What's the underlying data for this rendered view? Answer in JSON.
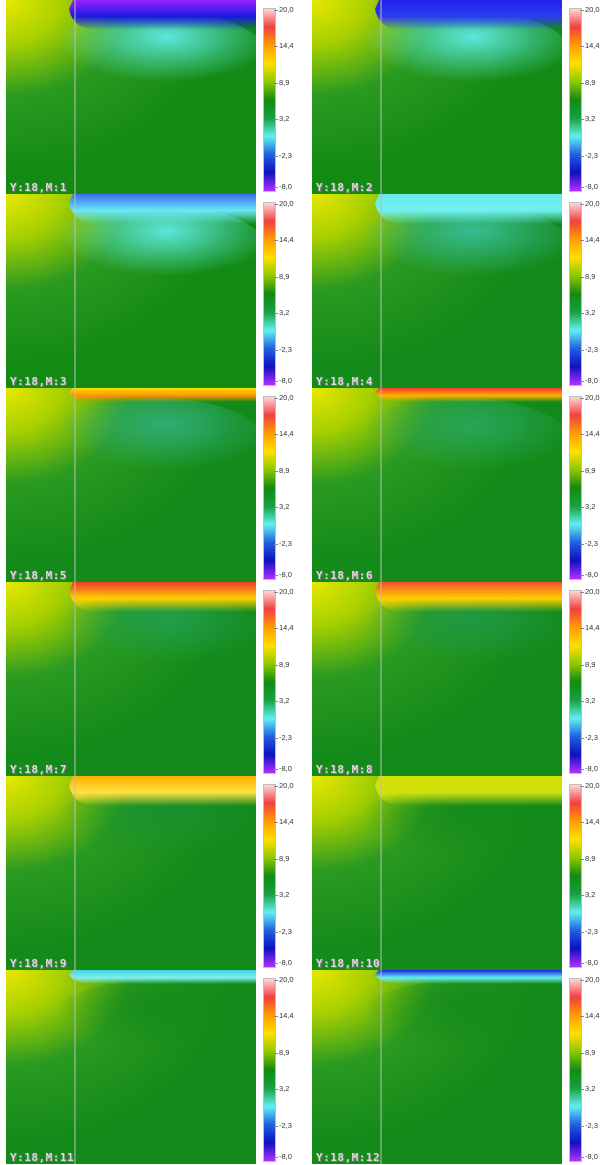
{
  "colorbar": {
    "ticks": [
      "20,0",
      "14,4",
      "8,9",
      "3,2",
      "-2,3",
      "-8,0"
    ],
    "colors": [
      "#ffd6d6",
      "#f04040",
      "#ff9c00",
      "#ffe000",
      "#8ec800",
      "#138a13",
      "#18a040",
      "#60f0f0",
      "#2060e0",
      "#1010c0",
      "#b030ff"
    ],
    "range": [
      -8.0,
      20.0
    ]
  },
  "chart_data": [
    {
      "type": "heatmap",
      "label": "Y:18,M:1",
      "top_band": {
        "color": "#9a20ff",
        "secondary": "#1a1ae0",
        "extent": "full"
      },
      "subsurface": "#60f0f0"
    },
    {
      "type": "heatmap",
      "label": "Y:18,M:2",
      "top_band": {
        "color": "#2222e8",
        "secondary": "#2a3cf0",
        "extent": "full"
      },
      "subsurface": "#60f0f0"
    },
    {
      "type": "heatmap",
      "label": "Y:18,M:3",
      "top_band": {
        "color": "#3a6cf0",
        "secondary": "#6ae8f5",
        "extent": "full"
      },
      "subsurface": "#60f0f0"
    },
    {
      "type": "heatmap",
      "label": "Y:18,M:4",
      "top_band": {
        "color": "#6ae8f0",
        "secondary": "#70f0f0",
        "extent": "full"
      },
      "subsurface": "#38c0a0"
    },
    {
      "type": "heatmap",
      "label": "Y:18,M:5",
      "top_band": {
        "color": "#ffe000",
        "secondary": "#ff9000",
        "extent": "thin"
      },
      "subsurface": "#30b080"
    },
    {
      "type": "heatmap",
      "label": "Y:18,M:6",
      "top_band": {
        "color": "#f03a2a",
        "secondary": "#ffb000",
        "extent": "thin"
      },
      "subsurface": "#28a860"
    },
    {
      "type": "heatmap",
      "label": "Y:18,M:7",
      "top_band": {
        "color": "#ee3a2a",
        "secondary": "#ffd000",
        "extent": "full"
      },
      "subsurface": "#20a050"
    },
    {
      "type": "heatmap",
      "label": "Y:18,M:8",
      "top_band": {
        "color": "#f2502a",
        "secondary": "#ffd000",
        "extent": "full"
      },
      "subsurface": "#1e9a48"
    },
    {
      "type": "heatmap",
      "label": "Y:18,M:9",
      "top_band": {
        "color": "#ffb000",
        "secondary": "#ffe040",
        "extent": "full"
      },
      "subsurface": "#189030"
    },
    {
      "type": "heatmap",
      "label": "Y:18,M:10",
      "top_band": {
        "color": "#d6e000",
        "secondary": "#d0e010",
        "extent": "full"
      },
      "subsurface": "#148a1a"
    },
    {
      "type": "heatmap",
      "label": "Y:18,M:11",
      "top_band": {
        "color": "#40d0e0",
        "secondary": "#80f0f0",
        "extent": "thin"
      },
      "subsurface": "#148a1a"
    },
    {
      "type": "heatmap",
      "label": "Y:18,M:12",
      "top_band": {
        "color": "#1e1ed8",
        "secondary": "#60f0f0",
        "extent": "thin"
      },
      "subsurface": "#148a1a"
    }
  ]
}
